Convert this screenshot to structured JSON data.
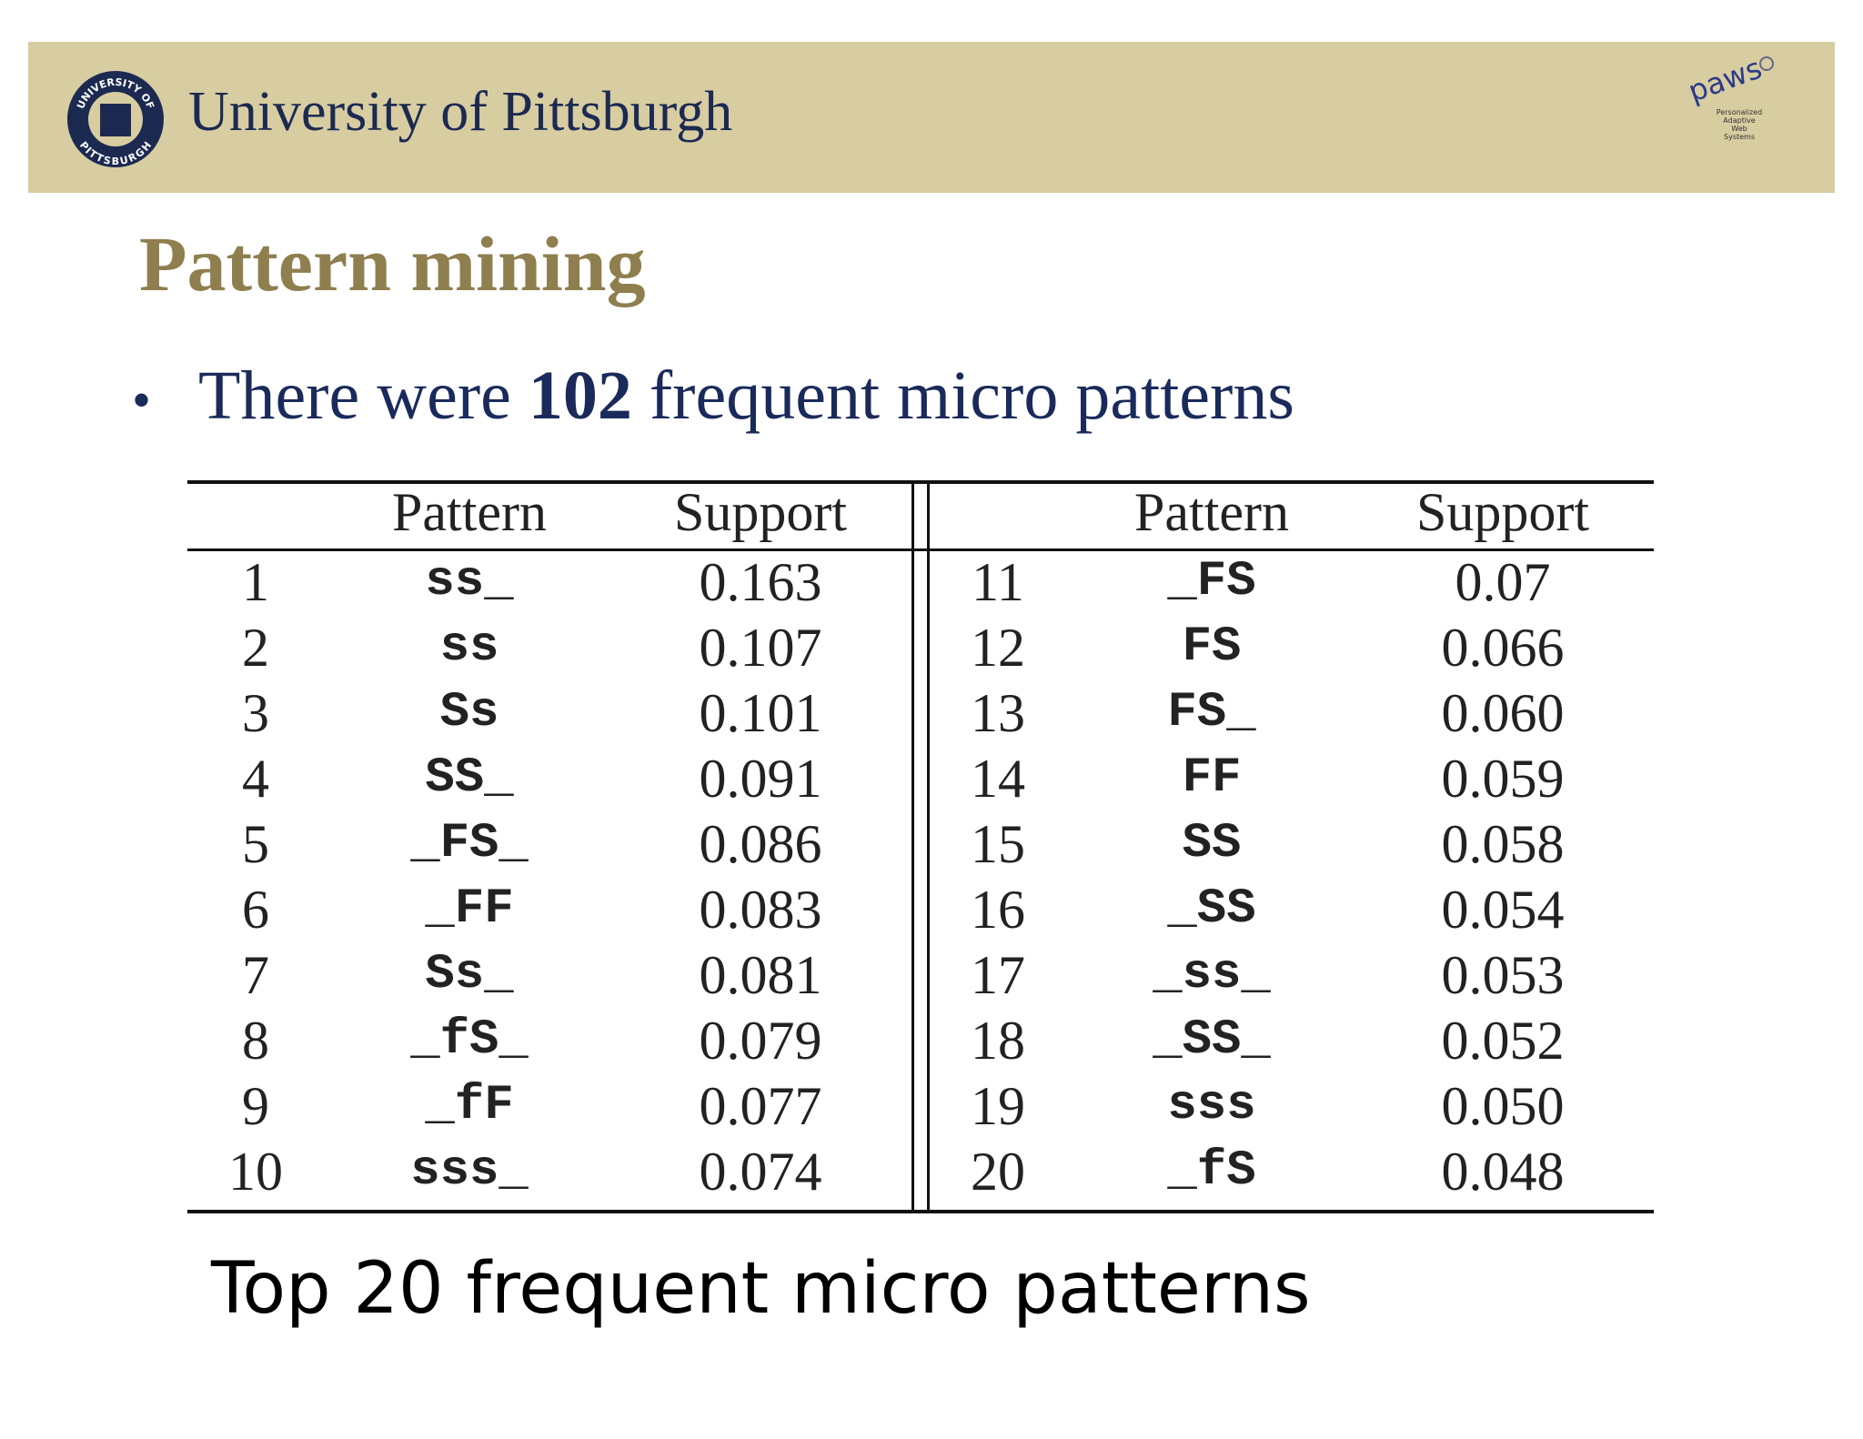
{
  "header": {
    "title": "University of Pittsburgh",
    "seal_top": "UNIVERSITY OF",
    "seal_bottom": "PITTSBURGH",
    "logo": "paws",
    "logo_lines": [
      "Personalized",
      "Adaptive",
      "Web",
      "Systems"
    ]
  },
  "slide_title": "Pattern mining",
  "bullet": {
    "before": "There were ",
    "bold": "102",
    "after": " frequent micro patterns"
  },
  "table": {
    "left": {
      "header": [
        "Pattern",
        "Support"
      ],
      "rows": [
        [
          1,
          "ss_",
          "0.163"
        ],
        [
          2,
          "ss",
          "0.107"
        ],
        [
          3,
          "Ss",
          "0.101"
        ],
        [
          4,
          "SS_",
          "0.091"
        ],
        [
          5,
          "_FS_",
          "0.086"
        ],
        [
          6,
          "_FF",
          "0.083"
        ],
        [
          7,
          "Ss_",
          "0.081"
        ],
        [
          8,
          "_fS_",
          "0.079"
        ],
        [
          9,
          "_fF",
          "0.077"
        ],
        [
          10,
          "sss_",
          "0.074"
        ]
      ]
    },
    "right": {
      "header": [
        "Pattern",
        "Support"
      ],
      "rows": [
        [
          11,
          "_FS",
          "0.07"
        ],
        [
          12,
          "FS",
          "0.066"
        ],
        [
          13,
          "FS_",
          "0.060"
        ],
        [
          14,
          "FF",
          "0.059"
        ],
        [
          15,
          "SS",
          "0.058"
        ],
        [
          16,
          "_SS",
          "0.054"
        ],
        [
          17,
          "_ss_",
          "0.053"
        ],
        [
          18,
          "_SS_",
          "0.052"
        ],
        [
          19,
          "sss",
          "0.050"
        ],
        [
          20,
          "_fS",
          "0.048"
        ]
      ]
    }
  },
  "caption": "Top 20 frequent micro patterns"
}
